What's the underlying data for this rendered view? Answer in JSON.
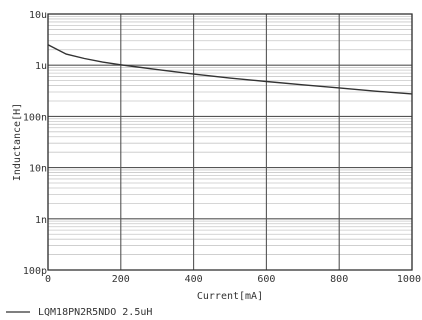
{
  "chart_data": {
    "type": "line",
    "xlabel": "Current[mA]",
    "ylabel": "Inductance[H]",
    "x_scale": "linear",
    "y_scale": "log",
    "xlim": [
      0,
      1000
    ],
    "ylim": [
      1e-10,
      1e-05
    ],
    "x_ticks": [
      0,
      200,
      400,
      600,
      800,
      1000
    ],
    "x_tick_labels": [
      "0",
      "200",
      "400",
      "600",
      "800",
      "1000"
    ],
    "y_ticks": [
      1e-10,
      1e-09,
      1e-08,
      1e-07,
      1e-06,
      1e-05
    ],
    "y_tick_labels": [
      "100p",
      "1n",
      "10n",
      "100n",
      "1u",
      "10u"
    ],
    "grid": true,
    "legend_position": "bottom-left",
    "series": [
      {
        "name": "LQM18PN2R5NDO 2.5uH",
        "color": "#333333",
        "x": [
          0,
          50,
          100,
          150,
          200,
          300,
          400,
          500,
          600,
          700,
          800,
          900,
          1000
        ],
        "y": [
          2.5e-06,
          1.65e-06,
          1.35e-06,
          1.15e-06,
          1.02e-06,
          8.2e-07,
          6.7e-07,
          5.6e-07,
          4.8e-07,
          4.15e-07,
          3.6e-07,
          3.1e-07,
          2.75e-07
        ]
      }
    ],
    "colors": {
      "grid_major": "#555555",
      "grid_minor": "#c8c8c8",
      "text": "#333333"
    }
  }
}
